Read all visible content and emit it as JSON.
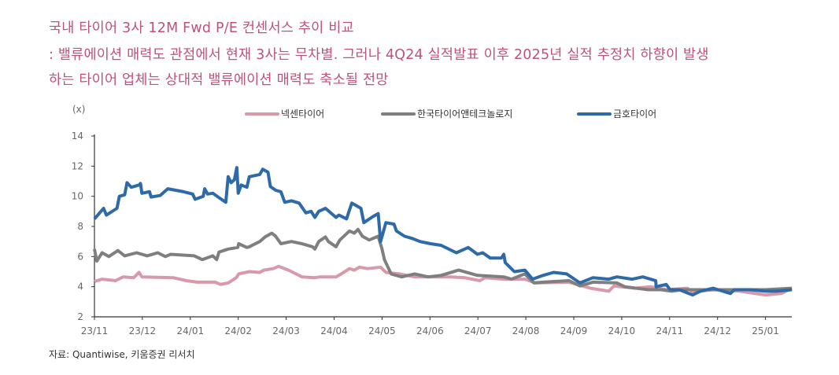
{
  "title": {
    "line1": "국내 타이어 3사 12M Fwd P/E 컨센서스 추이 비교",
    "line2": ": 밸류에이션 매력도 관점에서 현재 3사는 무차별. 그러나 4Q24 실적발표 이후 2025년 실적 추정치 하향이 발생",
    "line3": "하는 타이어 업체는 상대적 밸류에이션 매력도 축소될 전망"
  },
  "source": "자료: Quantiwise, 키움증권 리서치",
  "chart_data": {
    "type": "line",
    "title": "국내 타이어 3사 12M Fwd P/E 컨센서스 추이 비교",
    "ylabel": "(x)",
    "xlabel": "",
    "ylim": [
      2,
      14
    ],
    "yticks": [
      "2",
      "4",
      "6",
      "8",
      "10",
      "12",
      "14"
    ],
    "x_unit": "months since 23/11",
    "xlim": [
      0,
      14.55
    ],
    "xticks": [
      "23/11",
      "23/12",
      "24/01",
      "24/02",
      "24/03",
      "24/04",
      "24/05",
      "24/06",
      "24/07",
      "24/08",
      "24/09",
      "24/10",
      "24/11",
      "24/12",
      "25/01"
    ],
    "grid": false,
    "legend_position": "top",
    "series": [
      {
        "name": "넥센타이어",
        "color": "#d899ab",
        "x": [
          0,
          0.16,
          0.44,
          0.6,
          0.82,
          0.93,
          0.99,
          1.64,
          1.92,
          2.14,
          2.52,
          2.63,
          2.79,
          2.96,
          3.01,
          3.23,
          3.45,
          3.53,
          3.73,
          3.84,
          4.05,
          4.33,
          4.6,
          4.71,
          5.04,
          5.15,
          5.32,
          5.42,
          5.53,
          5.7,
          5.97,
          6.08,
          6.36,
          6.68,
          7.23,
          7.44,
          7.72,
          8.04,
          8.15,
          8.54,
          8.98,
          9.2,
          9.9,
          10.35,
          10.73,
          10.84,
          11.28,
          11.6,
          11.93,
          12.37,
          12.48,
          12.91,
          13.46,
          14.0,
          14.33,
          14.55
        ],
        "y": [
          4.35,
          4.5,
          4.4,
          4.65,
          4.6,
          4.95,
          4.65,
          4.6,
          4.4,
          4.3,
          4.3,
          4.15,
          4.25,
          4.6,
          4.85,
          5.0,
          4.95,
          5.1,
          5.2,
          5.35,
          5.1,
          4.65,
          4.6,
          4.65,
          4.65,
          4.85,
          5.2,
          5.1,
          5.3,
          5.2,
          5.3,
          4.95,
          4.85,
          4.65,
          4.65,
          4.65,
          4.6,
          4.4,
          4.6,
          4.5,
          4.5,
          4.25,
          4.3,
          3.9,
          3.7,
          4.05,
          3.9,
          4.0,
          3.8,
          3.9,
          3.65,
          3.8,
          3.7,
          3.45,
          3.55,
          3.9
        ]
      },
      {
        "name": "한국타이어앤테크놀로지",
        "color": "#7f7f7f",
        "x": [
          0,
          0.05,
          0.16,
          0.3,
          0.49,
          0.63,
          0.88,
          1.1,
          1.32,
          1.48,
          1.59,
          2.08,
          2.25,
          2.47,
          2.55,
          2.6,
          2.79,
          2.99,
          3.01,
          3.18,
          3.23,
          3.45,
          3.56,
          3.7,
          3.78,
          3.89,
          4.11,
          4.33,
          4.55,
          4.6,
          4.68,
          4.82,
          4.88,
          5.04,
          5.12,
          5.32,
          5.42,
          5.5,
          5.59,
          5.73,
          5.92,
          6.0,
          6.05,
          6.19,
          6.41,
          6.68,
          6.96,
          7.23,
          7.6,
          7.99,
          8.54,
          8.7,
          8.98,
          9.17,
          9.36,
          9.9,
          10.13,
          10.4,
          10.9,
          11.06,
          11.55,
          11.82,
          12.04,
          12.26,
          12.91,
          13.46,
          14.0,
          14.55
        ],
        "y": [
          6.5,
          5.7,
          6.25,
          6.0,
          6.4,
          6.05,
          6.25,
          6.05,
          6.25,
          6.0,
          6.15,
          6.05,
          5.8,
          6.05,
          5.8,
          6.3,
          6.5,
          6.6,
          6.85,
          6.6,
          6.65,
          7.0,
          7.3,
          7.55,
          7.35,
          6.85,
          7.0,
          6.85,
          6.65,
          6.5,
          7.0,
          7.3,
          7.0,
          6.65,
          7.1,
          7.7,
          7.55,
          7.8,
          7.35,
          7.1,
          7.35,
          6.5,
          5.8,
          4.85,
          4.65,
          4.85,
          4.65,
          4.75,
          5.1,
          4.75,
          4.65,
          4.5,
          4.85,
          4.25,
          4.3,
          4.4,
          4.05,
          4.3,
          4.25,
          4.0,
          3.8,
          3.8,
          3.7,
          3.8,
          3.8,
          3.8,
          3.8,
          3.9
        ]
      },
      {
        "name": "금호타이어",
        "color": "#2e6aa8",
        "x": [
          0,
          0.19,
          0.25,
          0.47,
          0.52,
          0.63,
          0.68,
          0.77,
          0.93,
          0.96,
          0.99,
          1.15,
          1.18,
          1.37,
          1.53,
          1.86,
          2.05,
          2.1,
          2.27,
          2.3,
          2.36,
          2.47,
          2.58,
          2.74,
          2.79,
          2.85,
          2.92,
          2.97,
          3.0,
          3.06,
          3.18,
          3.23,
          3.45,
          3.51,
          3.62,
          3.67,
          3.78,
          3.89,
          3.97,
          4.11,
          4.27,
          4.41,
          4.52,
          4.6,
          4.68,
          4.82,
          4.93,
          5.04,
          5.1,
          5.26,
          5.37,
          5.56,
          5.62,
          5.81,
          5.92,
          5.97,
          6.08,
          6.25,
          6.3,
          6.47,
          6.63,
          6.79,
          7.01,
          7.23,
          7.55,
          7.8,
          7.99,
          8.1,
          8.26,
          8.49,
          8.54,
          8.57,
          8.76,
          8.98,
          9.14,
          9.36,
          9.58,
          9.85,
          10.13,
          10.4,
          10.73,
          10.9,
          11.22,
          11.44,
          11.71,
          11.72,
          11.93,
          12.01,
          12.2,
          12.48,
          12.64,
          12.91,
          13.27,
          13.35,
          13.68,
          14.0,
          14.22,
          14.55
        ],
        "y": [
          8.5,
          9.2,
          8.75,
          9.2,
          10.0,
          10.1,
          10.9,
          10.6,
          10.75,
          10.85,
          10.2,
          10.3,
          9.95,
          10.05,
          10.5,
          10.3,
          10.15,
          9.8,
          10.0,
          10.5,
          10.15,
          10.2,
          9.95,
          9.6,
          11.3,
          10.9,
          11.1,
          11.9,
          10.2,
          10.75,
          10.6,
          11.3,
          11.45,
          11.8,
          11.6,
          10.65,
          10.4,
          10.3,
          9.6,
          9.7,
          9.55,
          8.9,
          9.0,
          8.6,
          9.0,
          9.2,
          8.9,
          8.6,
          8.75,
          8.5,
          9.55,
          9.2,
          8.25,
          8.65,
          8.85,
          7.0,
          8.25,
          8.15,
          7.7,
          7.35,
          7.2,
          7.0,
          6.85,
          6.75,
          6.25,
          6.6,
          6.15,
          6.25,
          5.9,
          5.9,
          6.15,
          5.6,
          5.0,
          5.1,
          4.5,
          4.75,
          4.95,
          4.85,
          4.25,
          4.6,
          4.5,
          4.65,
          4.5,
          4.65,
          4.4,
          4.0,
          4.15,
          3.8,
          3.8,
          3.45,
          3.7,
          3.9,
          3.55,
          3.8,
          3.8,
          3.7,
          3.7,
          3.8
        ]
      }
    ]
  }
}
